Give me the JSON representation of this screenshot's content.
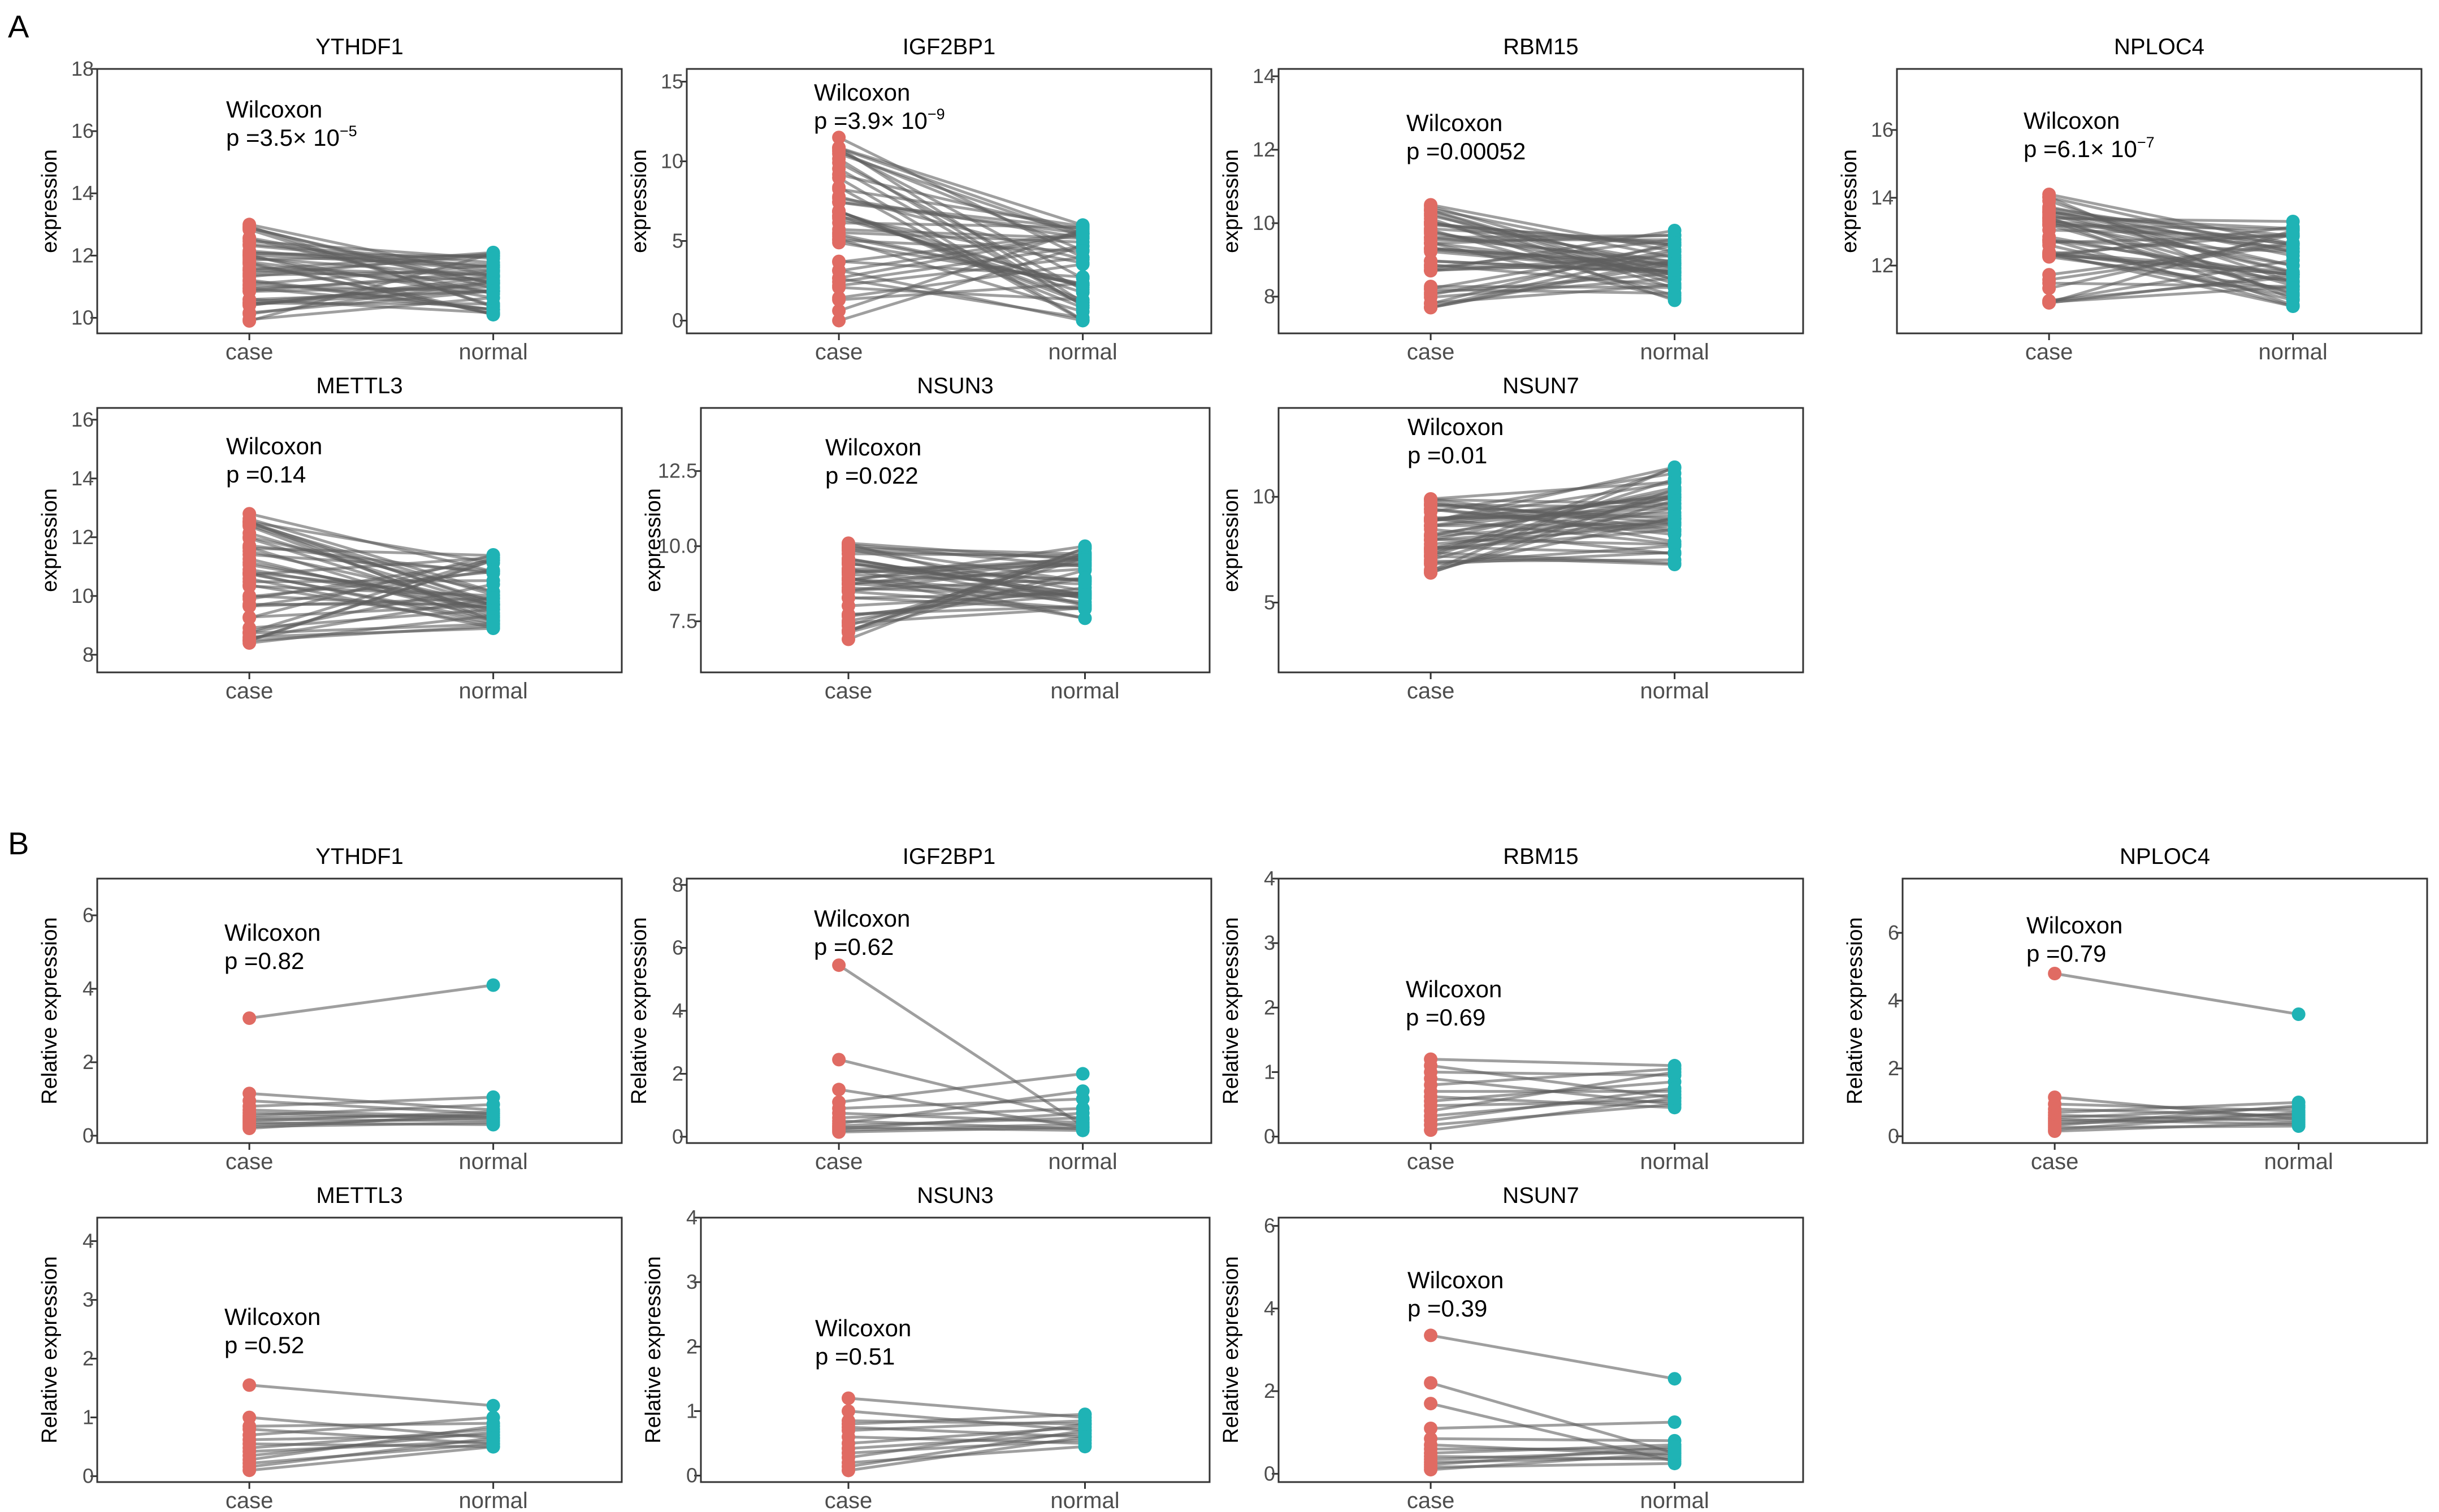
{
  "colors": {
    "case": "#e06b63",
    "normal": "#1fb3b5",
    "pair_line": "#5f5f5f",
    "frame": "#333333"
  },
  "panel_labels": [
    "A",
    "B"
  ],
  "chart_data": [
    {
      "panel": "A",
      "type": "paired-dot",
      "title": "YTHDF1",
      "categories": [
        "case",
        "normal"
      ],
      "ylabel": "expression",
      "ylim": [
        9.5,
        18
      ],
      "yticks": [
        10,
        12,
        14,
        16,
        18
      ],
      "tick_labels": [
        "10",
        "12",
        "14",
        "16",
        "18"
      ],
      "test": "Wilcoxon",
      "p_mantissa": "3.5",
      "p_exponent": "−5",
      "pairs": 46,
      "case_range": [
        9.9,
        13.0
      ],
      "normal_range": [
        10.1,
        12.1
      ]
    },
    {
      "panel": "A",
      "type": "paired-dot",
      "title": "IGF2BP1",
      "categories": [
        "case",
        "normal"
      ],
      "ylabel": "expression",
      "ylim": [
        -0.8,
        15.8
      ],
      "yticks": [
        0,
        5,
        10,
        15
      ],
      "tick_labels": [
        "0",
        "5",
        "10",
        "15"
      ],
      "test": "Wilcoxon",
      "p_mantissa": "3.9",
      "p_exponent": "−9",
      "pairs": 46,
      "case_range": [
        0.0,
        11.5
      ],
      "normal_range": [
        0.0,
        6.0
      ]
    },
    {
      "panel": "A",
      "type": "paired-dot",
      "title": "RBM15",
      "categories": [
        "case",
        "normal"
      ],
      "ylabel": "expression",
      "ylim": [
        7.0,
        14.2
      ],
      "yticks": [
        8,
        10,
        12,
        14
      ],
      "tick_labels": [
        "8",
        "10",
        "12",
        "14"
      ],
      "test": "Wilcoxon",
      "p_text": "p =0.00052",
      "pairs": 46,
      "case_range": [
        7.7,
        10.5
      ],
      "normal_range": [
        7.9,
        9.8
      ]
    },
    {
      "panel": "A",
      "type": "paired-dot",
      "title": "NPLOC4",
      "categories": [
        "case",
        "normal"
      ],
      "ylabel": "expression",
      "ylim": [
        10.0,
        17.8
      ],
      "yticks": [
        12,
        14,
        16
      ],
      "tick_labels": [
        "12",
        "14",
        "16"
      ],
      "test": "Wilcoxon",
      "p_mantissa": "6.1",
      "p_exponent": "−7",
      "pairs": 46,
      "case_range": [
        10.9,
        14.1
      ],
      "normal_range": [
        10.8,
        13.3
      ]
    },
    {
      "panel": "A",
      "type": "paired-dot",
      "title": "METTL3",
      "categories": [
        "case",
        "normal"
      ],
      "ylabel": "expression",
      "ylim": [
        7.4,
        16.4
      ],
      "yticks": [
        8,
        10,
        12,
        14,
        16
      ],
      "tick_labels": [
        "8",
        "10",
        "12",
        "14",
        "16"
      ],
      "test": "Wilcoxon",
      "p_text": "p =0.14",
      "pairs": 46,
      "case_range": [
        8.4,
        12.8
      ],
      "normal_range": [
        8.9,
        11.4
      ]
    },
    {
      "panel": "A",
      "type": "paired-dot",
      "title": "NSUN3",
      "categories": [
        "case",
        "normal"
      ],
      "ylabel": "expression",
      "ylim": [
        5.8,
        14.6
      ],
      "yticks": [
        7.5,
        10.0,
        12.5
      ],
      "tick_labels": [
        "7.5",
        "10.0",
        "12.5"
      ],
      "test": "Wilcoxon",
      "p_text": "p =0.022",
      "pairs": 46,
      "case_range": [
        6.9,
        10.1
      ],
      "normal_range": [
        7.6,
        10.0
      ]
    },
    {
      "panel": "A",
      "type": "paired-dot",
      "title": "NSUN7",
      "categories": [
        "case",
        "normal"
      ],
      "ylabel": "expression",
      "ylim": [
        1.7,
        14.2
      ],
      "yticks": [
        5,
        10
      ],
      "tick_labels": [
        "5",
        "10"
      ],
      "test": "Wilcoxon",
      "p_text": "p =0.01",
      "pairs": 46,
      "case_range": [
        6.4,
        9.9
      ],
      "normal_range": [
        6.8,
        11.4
      ]
    },
    {
      "panel": "B",
      "type": "paired-dot",
      "title": "YTHDF1",
      "categories": [
        "case",
        "normal"
      ],
      "ylabel": "Relative expression",
      "ylim": [
        -0.2,
        7.0
      ],
      "yticks": [
        0,
        2,
        4,
        6
      ],
      "tick_labels": [
        "0",
        "2",
        "4",
        "6"
      ],
      "test": "Wilcoxon",
      "p_text": "p =0.82",
      "pairs": 14,
      "case_values": [
        3.2,
        1.15,
        0.95,
        0.8,
        0.7,
        0.62,
        0.55,
        0.5,
        0.45,
        0.4,
        0.35,
        0.3,
        0.25,
        0.2
      ],
      "normal_values": [
        4.1,
        0.7,
        0.6,
        1.05,
        0.5,
        0.45,
        0.85,
        0.55,
        0.4,
        0.65,
        0.3,
        0.5,
        0.35,
        0.6
      ]
    },
    {
      "panel": "B",
      "type": "paired-dot",
      "title": "IGF2BP1",
      "categories": [
        "case",
        "normal"
      ],
      "ylabel": "Relative expression",
      "ylim": [
        -0.2,
        8.2
      ],
      "yticks": [
        0,
        2,
        4,
        6,
        8
      ],
      "tick_labels": [
        "0",
        "2",
        "4",
        "6",
        "8"
      ],
      "test": "Wilcoxon",
      "p_text": "p =0.62",
      "pairs": 14,
      "case_values": [
        5.45,
        2.45,
        1.5,
        1.1,
        0.9,
        0.75,
        0.6,
        0.5,
        0.42,
        0.35,
        0.3,
        0.25,
        0.2,
        0.15
      ],
      "normal_values": [
        0.35,
        0.55,
        0.3,
        2.0,
        1.2,
        0.45,
        0.9,
        0.25,
        1.45,
        0.6,
        0.2,
        0.75,
        0.4,
        0.3
      ]
    },
    {
      "panel": "B",
      "type": "paired-dot",
      "title": "RBM15",
      "categories": [
        "case",
        "normal"
      ],
      "ylabel": "Relative expression",
      "ylim": [
        -0.1,
        4.0
      ],
      "yticks": [
        0,
        1,
        2,
        3,
        4
      ],
      "tick_labels": [
        "0",
        "1",
        "2",
        "3",
        "4"
      ],
      "test": "Wilcoxon",
      "p_text": "p =0.69",
      "pairs": 14,
      "case_values": [
        1.2,
        1.1,
        1.0,
        0.9,
        0.8,
        0.7,
        0.62,
        0.55,
        0.48,
        0.4,
        0.32,
        0.25,
        0.18,
        0.1
      ],
      "normal_values": [
        1.1,
        0.6,
        0.95,
        0.5,
        1.05,
        0.7,
        0.45,
        0.85,
        0.55,
        1.0,
        0.65,
        0.75,
        0.5,
        0.6
      ]
    },
    {
      "panel": "B",
      "type": "paired-dot",
      "title": "NPLOC4",
      "categories": [
        "case",
        "normal"
      ],
      "ylabel": "Relative expression",
      "ylim": [
        -0.2,
        7.6
      ],
      "yticks": [
        0,
        2,
        4,
        6
      ],
      "tick_labels": [
        "0",
        "2",
        "4",
        "6"
      ],
      "test": "Wilcoxon",
      "p_text": "p =0.79",
      "pairs": 14,
      "case_values": [
        4.8,
        1.15,
        0.95,
        0.8,
        0.7,
        0.62,
        0.55,
        0.5,
        0.44,
        0.38,
        0.32,
        0.26,
        0.2,
        0.15
      ],
      "normal_values": [
        3.6,
        0.5,
        0.75,
        0.6,
        1.0,
        0.45,
        0.85,
        0.35,
        0.65,
        0.55,
        0.9,
        0.3,
        0.7,
        0.4
      ]
    },
    {
      "panel": "B",
      "type": "paired-dot",
      "title": "METTL3",
      "categories": [
        "case",
        "normal"
      ],
      "ylabel": "Relative expression",
      "ylim": [
        -0.1,
        4.4
      ],
      "yticks": [
        0,
        1,
        2,
        3,
        4
      ],
      "tick_labels": [
        "0",
        "1",
        "2",
        "3",
        "4"
      ],
      "test": "Wilcoxon",
      "p_text": "p =0.52",
      "pairs": 14,
      "case_values": [
        1.55,
        1.0,
        0.85,
        0.8,
        0.7,
        0.62,
        0.55,
        0.48,
        0.42,
        0.35,
        0.28,
        0.22,
        0.16,
        0.1
      ],
      "normal_values": [
        1.2,
        0.65,
        0.9,
        0.55,
        1.0,
        0.7,
        0.5,
        0.8,
        0.6,
        0.75,
        0.85,
        0.55,
        0.65,
        0.5
      ]
    },
    {
      "panel": "B",
      "type": "paired-dot",
      "title": "NSUN3",
      "categories": [
        "case",
        "normal"
      ],
      "ylabel": "Relative expression",
      "ylim": [
        -0.1,
        4.0
      ],
      "yticks": [
        0,
        1,
        2,
        3,
        4
      ],
      "tick_labels": [
        "0",
        "1",
        "2",
        "3",
        "4"
      ],
      "test": "Wilcoxon",
      "p_text": "p =0.51",
      "pairs": 14,
      "case_values": [
        1.2,
        1.0,
        0.85,
        0.8,
        0.75,
        0.7,
        0.6,
        0.5,
        0.42,
        0.35,
        0.28,
        0.2,
        0.14,
        0.08
      ],
      "normal_values": [
        0.9,
        0.7,
        0.8,
        0.95,
        0.6,
        0.85,
        0.5,
        0.75,
        0.65,
        0.55,
        0.8,
        0.45,
        0.7,
        0.6
      ]
    },
    {
      "panel": "B",
      "type": "paired-dot",
      "title": "NSUN7",
      "categories": [
        "case",
        "normal"
      ],
      "ylabel": "Relative expression",
      "ylim": [
        -0.2,
        6.2
      ],
      "yticks": [
        0,
        2,
        4,
        6
      ],
      "tick_labels": [
        "0",
        "2",
        "4",
        "6"
      ],
      "test": "Wilcoxon",
      "p_text": "p =0.39",
      "pairs": 14,
      "case_values": [
        3.35,
        2.2,
        1.7,
        1.1,
        0.85,
        0.7,
        0.6,
        0.5,
        0.42,
        0.35,
        0.28,
        0.22,
        0.16,
        0.1
      ],
      "normal_values": [
        2.3,
        0.5,
        0.3,
        1.25,
        0.8,
        0.45,
        0.6,
        0.7,
        0.35,
        0.55,
        0.4,
        0.65,
        0.25,
        0.5
      ]
    }
  ]
}
